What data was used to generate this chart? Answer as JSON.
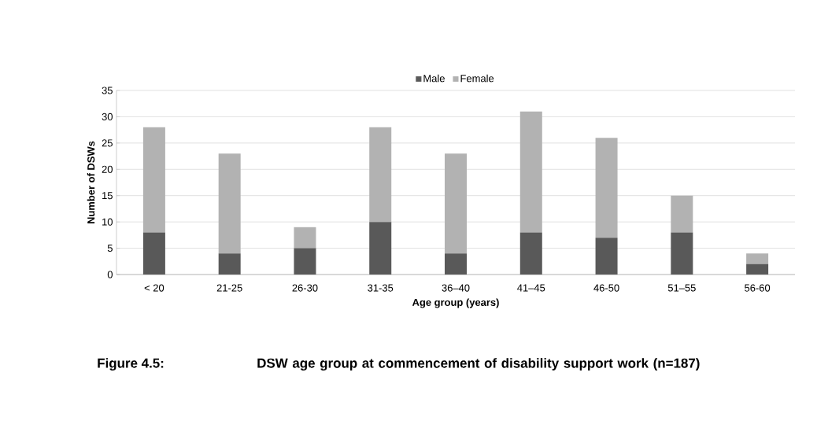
{
  "chart_data": {
    "type": "bar",
    "stacked": true,
    "categories": [
      "< 20",
      "21-25",
      "26-30",
      "31-35",
      "36–40",
      "41–45",
      "46-50",
      "51–55",
      "56-60"
    ],
    "series": [
      {
        "name": "Male",
        "color": "#595959",
        "values": [
          8,
          4,
          5,
          10,
          4,
          8,
          7,
          8,
          2
        ]
      },
      {
        "name": "Female",
        "color": "#b2b2b2",
        "values": [
          20,
          19,
          4,
          18,
          19,
          23,
          19,
          7,
          2
        ]
      }
    ],
    "xlabel": "Age group (years)",
    "ylabel": "Number of DSWs",
    "ylim": [
      0,
      35
    ],
    "yticks": [
      0,
      5,
      10,
      15,
      20,
      25,
      30,
      35
    ],
    "grid": "y",
    "legend": "top",
    "annotations": [
      "Figure 4.5:",
      "DSW age group at commencement of disability support work (n=187)"
    ]
  }
}
